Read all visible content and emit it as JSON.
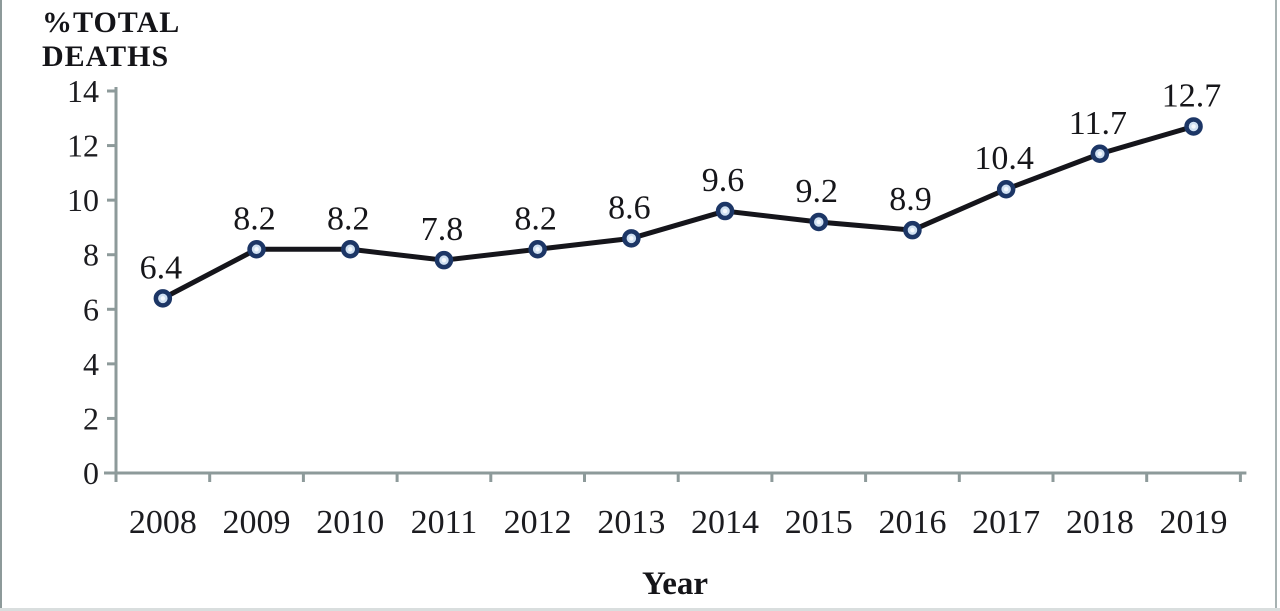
{
  "chart_data": {
    "type": "line",
    "title": "",
    "categories": [
      "2008",
      "2009",
      "2010",
      "2011",
      "2012",
      "2013",
      "2014",
      "2015",
      "2016",
      "2017",
      "2018",
      "2019"
    ],
    "series": [
      {
        "name": "% total deaths",
        "values": [
          6.4,
          8.2,
          8.2,
          7.8,
          8.2,
          8.6,
          9.6,
          9.2,
          8.9,
          10.4,
          11.7,
          12.7
        ]
      }
    ],
    "data_labels": [
      "6.4",
      "8.2",
      "8.2",
      "7.8",
      "8.2",
      "8.6",
      "9.6",
      "9.2",
      "8.9",
      "10.4",
      "11.7",
      "12.7"
    ],
    "xlabel": "Year",
    "ylabel": "%TOTAL DEATHS",
    "ylabel_lines": [
      "%TOTAL",
      "DEATHS"
    ],
    "ylim": [
      0,
      14
    ],
    "yticks": [
      0,
      2,
      4,
      6,
      8,
      10,
      12,
      14
    ],
    "grid": false,
    "legend": "none"
  },
  "colors": {
    "line": "#15151b",
    "marker_stroke": "#1c3666",
    "marker_fill": "#cfe0f2",
    "marker_center": "#f5f9fe",
    "axis": "#8d9a9a",
    "text": "#1c1c20"
  }
}
